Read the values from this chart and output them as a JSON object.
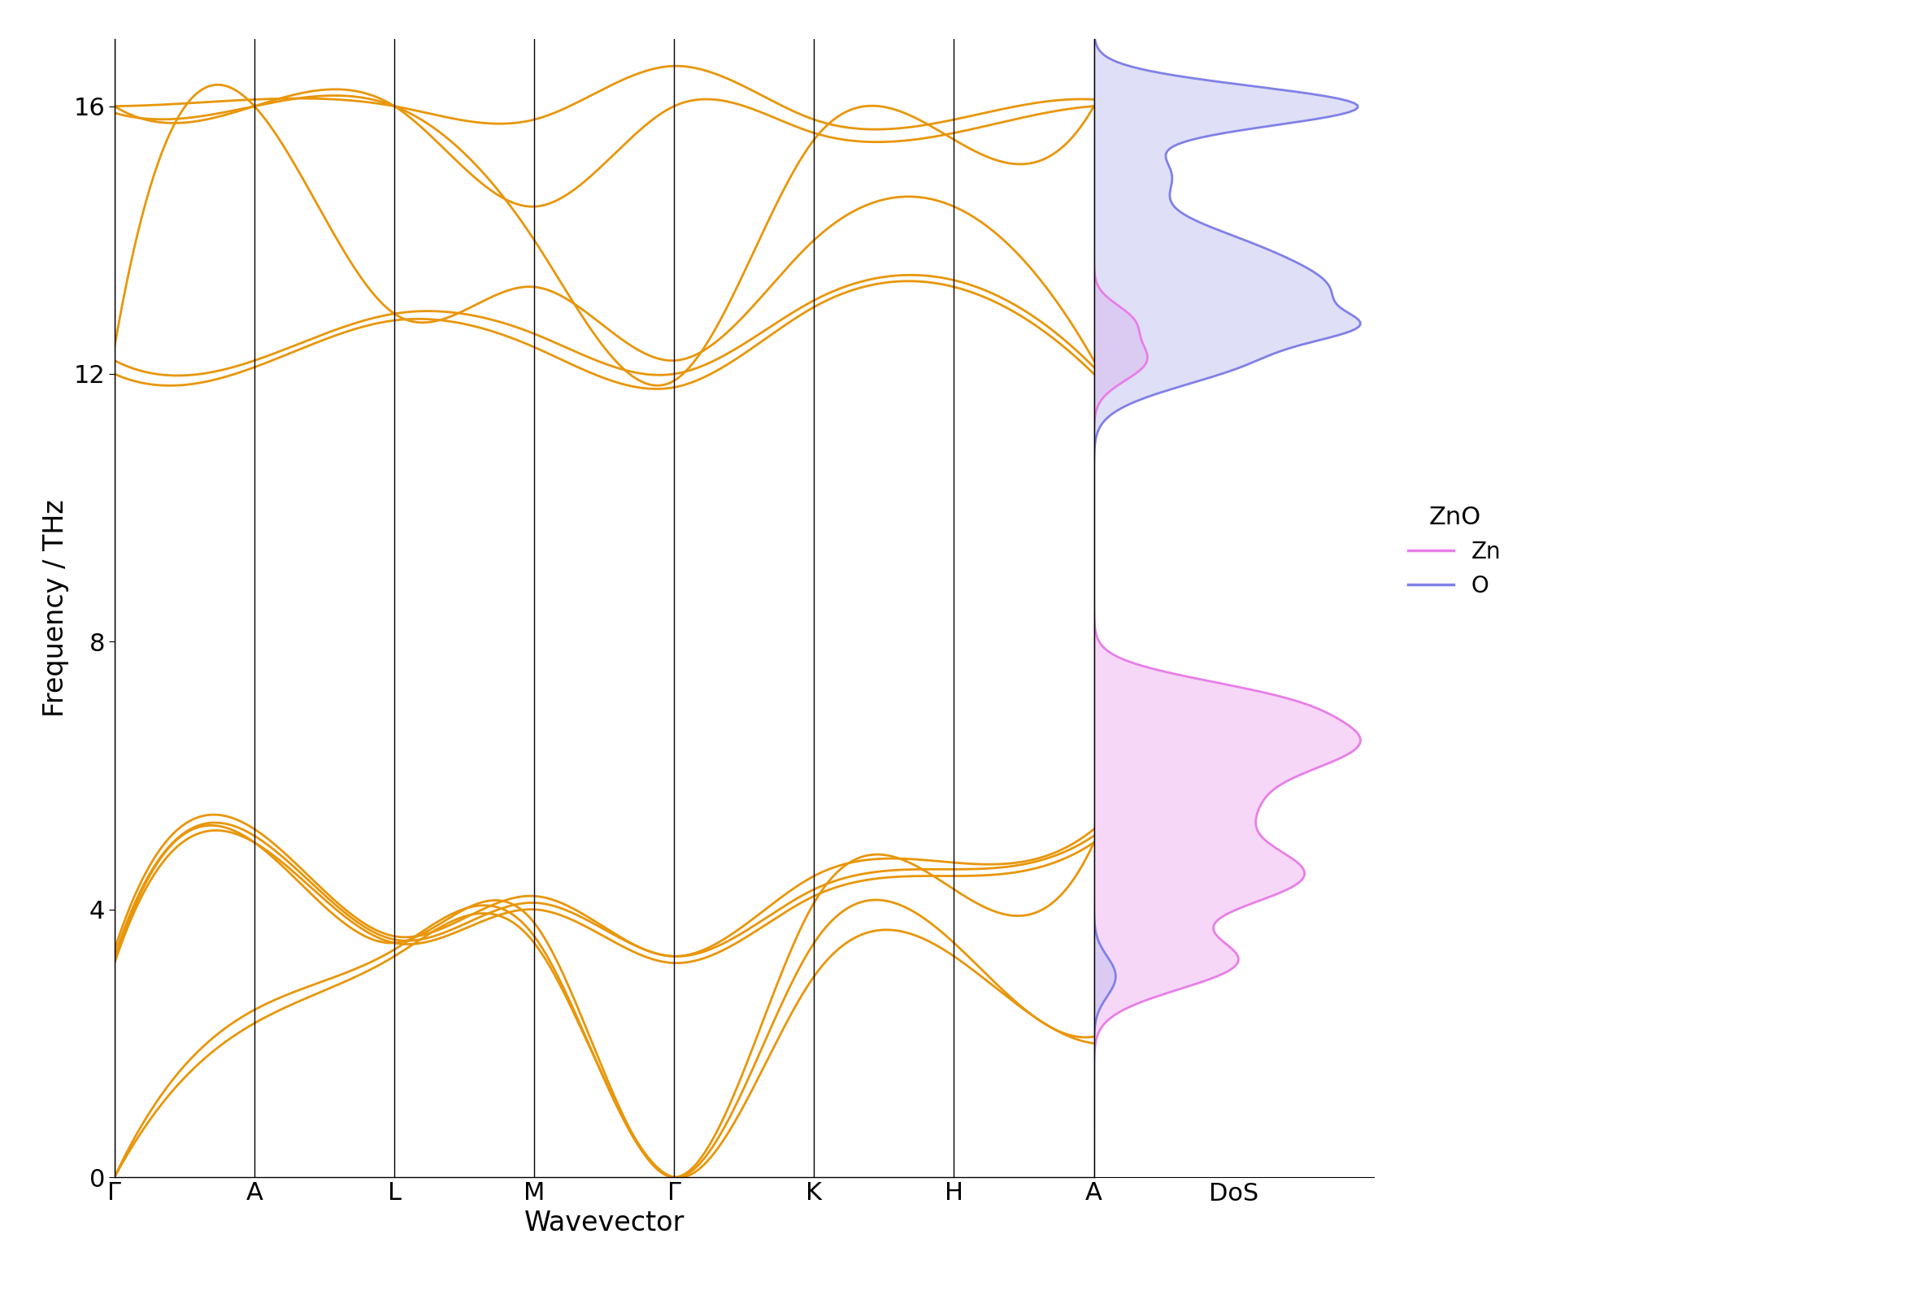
{
  "title": "ZnO",
  "ylabel": "Frequency / THz",
  "xlabel": "Wavevector",
  "dos_label": "DoS",
  "kpoint_labels": [
    "Γ",
    "A",
    "L",
    "M",
    "Γ",
    "K",
    "H",
    "A"
  ],
  "ylim": [
    0,
    17
  ],
  "yticks": [
    0,
    4,
    8,
    12,
    16
  ],
  "band_color": "#E8960A",
  "zn_color": "#E87EE8",
  "o_color": "#8080E8",
  "zn_fill_color": "#F0B0F0",
  "o_fill_color": "#C0C0F0",
  "legend_title": "ZnO",
  "legend_zn": "Zn",
  "legend_o": "O",
  "background": "#FFFFFF"
}
